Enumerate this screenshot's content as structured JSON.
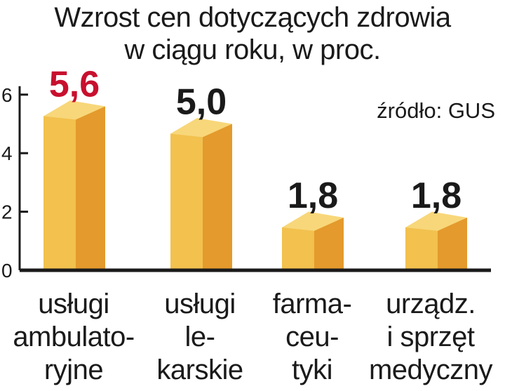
{
  "title_lines": [
    "Wzrost cen dotyczących zdrowia",
    "w ciągu roku, w proc."
  ],
  "source": "źródło: GUS",
  "colors": {
    "bar_front": "#f2c14e",
    "bar_side": "#e49a2c",
    "bar_top": "#f8d77a",
    "highlight_value": "#c8102e",
    "value": "#1a1a1a",
    "axis": "#1a1a1a",
    "grid": "#bdbdbd"
  },
  "chart_data": {
    "type": "bar",
    "title": "Wzrost cen dotyczących zdrowia w ciągu roku, w proc.",
    "categories": [
      "usługi ambulatoryjne",
      "usługi lekarskie",
      "farmaceutyki",
      "urządz. i sprzęt medyczny"
    ],
    "category_lines": [
      [
        "usługi",
        "ambulato-",
        "ryjne"
      ],
      [
        "usługi",
        "le-",
        "karskie"
      ],
      [
        "farma-",
        "ceu-",
        "tyki"
      ],
      [
        "urządz.",
        "i sprzęt",
        "medyczny"
      ]
    ],
    "values": [
      5.6,
      5.0,
      1.8,
      1.8
    ],
    "value_labels": [
      "5,6",
      "5,0",
      "1,8",
      "1,8"
    ],
    "highlighted_index": 0,
    "y_ticks": [
      "0",
      "2",
      "4",
      "6"
    ],
    "ylim": [
      0,
      6
    ],
    "grid": false,
    "legend": "none"
  }
}
